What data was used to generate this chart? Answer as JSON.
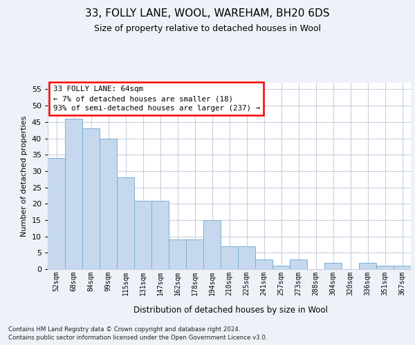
{
  "title1": "33, FOLLY LANE, WOOL, WAREHAM, BH20 6DS",
  "title2": "Size of property relative to detached houses in Wool",
  "xlabel": "Distribution of detached houses by size in Wool",
  "ylabel": "Number of detached properties",
  "categories": [
    "52sqm",
    "68sqm",
    "84sqm",
    "99sqm",
    "115sqm",
    "131sqm",
    "147sqm",
    "162sqm",
    "178sqm",
    "194sqm",
    "210sqm",
    "225sqm",
    "241sqm",
    "257sqm",
    "273sqm",
    "288sqm",
    "304sqm",
    "320sqm",
    "336sqm",
    "351sqm",
    "367sqm"
  ],
  "values": [
    34,
    46,
    43,
    40,
    28,
    21,
    21,
    9,
    9,
    15,
    7,
    7,
    3,
    1,
    3,
    0,
    2,
    0,
    2,
    1,
    1
  ],
  "bar_color": "#c5d8ed",
  "bar_edge_color": "#7bafd4",
  "annotation_text": "33 FOLLY LANE: 64sqm\n← 7% of detached houses are smaller (18)\n93% of semi-detached houses are larger (237) →",
  "annotation_box_color": "white",
  "annotation_box_edge_color": "red",
  "footer1": "Contains HM Land Registry data © Crown copyright and database right 2024.",
  "footer2": "Contains public sector information licensed under the Open Government Licence v3.0.",
  "ylim": [
    0,
    57
  ],
  "yticks": [
    0,
    5,
    10,
    15,
    20,
    25,
    30,
    35,
    40,
    45,
    50,
    55
  ],
  "bg_color": "#eef2f8",
  "plot_bg_color": "#ffffff",
  "grid_color": "#c8d0de"
}
